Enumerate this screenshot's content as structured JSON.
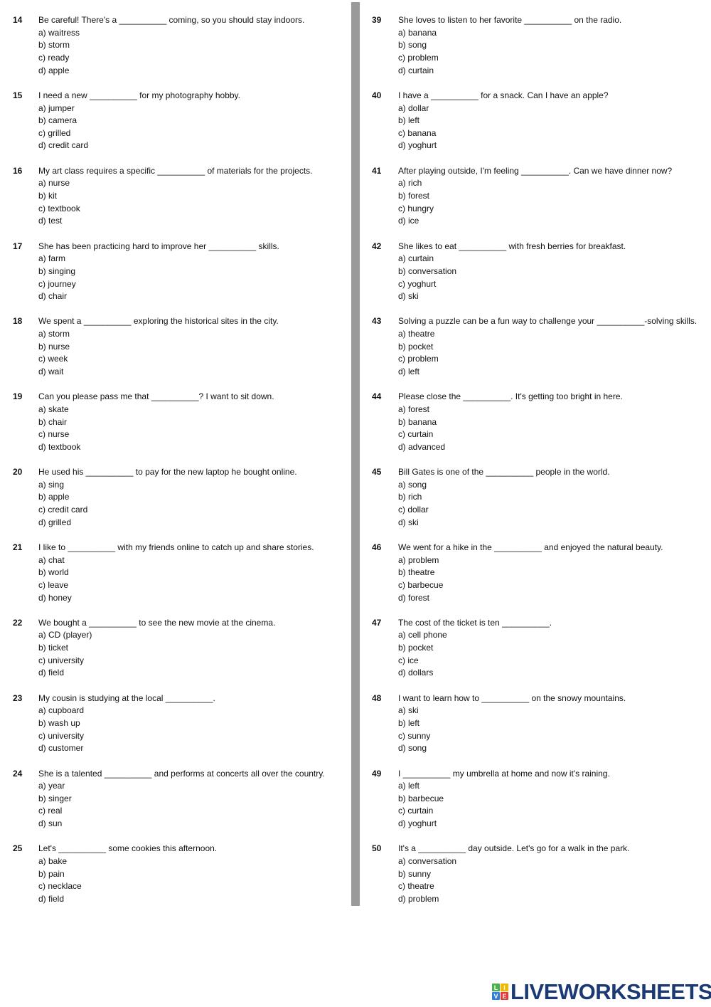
{
  "questions": [
    {
      "num": "14",
      "text": "Be careful! There's a __________ coming, so you should stay indoors.",
      "options": [
        "a) waitress",
        "b) storm",
        "c) ready",
        "d) apple"
      ]
    },
    {
      "num": "15",
      "text": "I need a new __________ for my photography hobby.",
      "options": [
        "a) jumper",
        "b) camera",
        "c) grilled",
        "d) credit card"
      ]
    },
    {
      "num": "16",
      "text": "My art class requires a specific __________ of materials for the projects.",
      "options": [
        "a) nurse",
        "b) kit",
        "c) textbook",
        "d) test"
      ]
    },
    {
      "num": "17",
      "text": "She has been practicing hard to improve her __________ skills.",
      "options": [
        "a) farm",
        "b) singing",
        "c) journey",
        "d) chair"
      ]
    },
    {
      "num": "18",
      "text": "We spent a __________ exploring the historical sites in the city.",
      "options": [
        "a) storm",
        "b) nurse",
        "c) week",
        "d) wait"
      ]
    },
    {
      "num": "19",
      "text": "Can you please pass me that __________? I want to sit down.",
      "options": [
        "a) skate",
        "b) chair",
        "c) nurse",
        "d) textbook"
      ]
    },
    {
      "num": "20",
      "text": "He used his __________ to pay for the new laptop he bought online.",
      "options": [
        "a) sing",
        "b) apple",
        "c) credit card",
        "d) grilled"
      ]
    },
    {
      "num": "21",
      "text": "I like to __________ with my friends online to catch up and share stories.",
      "options": [
        "a) chat",
        "b) world",
        "c) leave",
        "d) honey"
      ]
    },
    {
      "num": "22",
      "text": "We bought a __________ to see the new movie at the cinema.",
      "options": [
        "a) CD (player)",
        "b) ticket",
        "c) university",
        "d) field"
      ]
    },
    {
      "num": "23",
      "text": "My cousin is studying at the local __________.",
      "options": [
        "a) cupboard",
        "b) wash up",
        "c) university",
        "d) customer"
      ]
    },
    {
      "num": "24",
      "text": "She is a talented __________ and performs at concerts all over the country.",
      "options": [
        "a) year",
        "b) singer",
        "c) real",
        "d) sun"
      ]
    },
    {
      "num": "25",
      "text": "Let's __________ some cookies this afternoon.",
      "options": [
        "a) bake",
        "b) pain",
        "c) necklace",
        "d) field"
      ]
    },
    {
      "num": "39",
      "text": "She loves to listen to her favorite __________ on the radio.",
      "options": [
        "a) banana",
        "b) song",
        "c) problem",
        "d) curtain"
      ]
    },
    {
      "num": "40",
      "text": "I have a __________ for a snack. Can I have an apple?",
      "options": [
        "a) dollar",
        "b) left",
        "c) banana",
        "d) yoghurt"
      ]
    },
    {
      "num": "41",
      "text": "After playing outside, I'm feeling __________. Can we have dinner now?",
      "options": [
        "a) rich",
        "b) forest",
        "c) hungry",
        "d) ice"
      ]
    },
    {
      "num": "42",
      "text": "She likes to eat __________ with fresh berries for breakfast.",
      "options": [
        "a) curtain",
        "b) conversation",
        "c) yoghurt",
        "d) ski"
      ]
    },
    {
      "num": "43",
      "text": "Solving a puzzle can be a fun way to challenge your __________-solving skills.",
      "options": [
        "a) theatre",
        "b) pocket",
        "c) problem",
        "d) left"
      ]
    },
    {
      "num": "44",
      "text": "Please close the __________. It's getting too bright in here.",
      "options": [
        "a) forest",
        "b) banana",
        "c) curtain",
        "d) advanced"
      ]
    },
    {
      "num": "45",
      "text": "Bill Gates is one of the __________ people in the world.",
      "options": [
        "a) song",
        "b) rich",
        "c) dollar",
        "d) ski"
      ]
    },
    {
      "num": "46",
      "text": "We went for a hike in the __________ and enjoyed the natural beauty.",
      "options": [
        "a) problem",
        "b) theatre",
        "c) barbecue",
        "d) forest"
      ]
    },
    {
      "num": "47",
      "text": "The cost of the ticket is ten __________.",
      "options": [
        "a) cell phone",
        "b) pocket",
        "c) ice",
        "d) dollars"
      ]
    },
    {
      "num": "48",
      "text": "I want to learn how to __________ on the snowy mountains.",
      "options": [
        "a) ski",
        "b) left",
        "c) sunny",
        "d) song"
      ]
    },
    {
      "num": "49",
      "text": "I __________ my umbrella at home and now it's raining.",
      "options": [
        "a) left",
        "b) barbecue",
        "c) curtain",
        "d) yoghurt"
      ]
    },
    {
      "num": "50",
      "text": "It's a __________ day outside. Let's go for a walk in the park.",
      "options": [
        "a) conversation",
        "b) sunny",
        "c) theatre",
        "d) problem"
      ]
    }
  ],
  "logo": {
    "text": "LIVEWORKSHEETS",
    "blocks": [
      "L",
      "I",
      "V",
      "E"
    ],
    "block_colors": [
      "#4caf50",
      "#f2b705",
      "#2f7fd6",
      "#e53935"
    ]
  }
}
